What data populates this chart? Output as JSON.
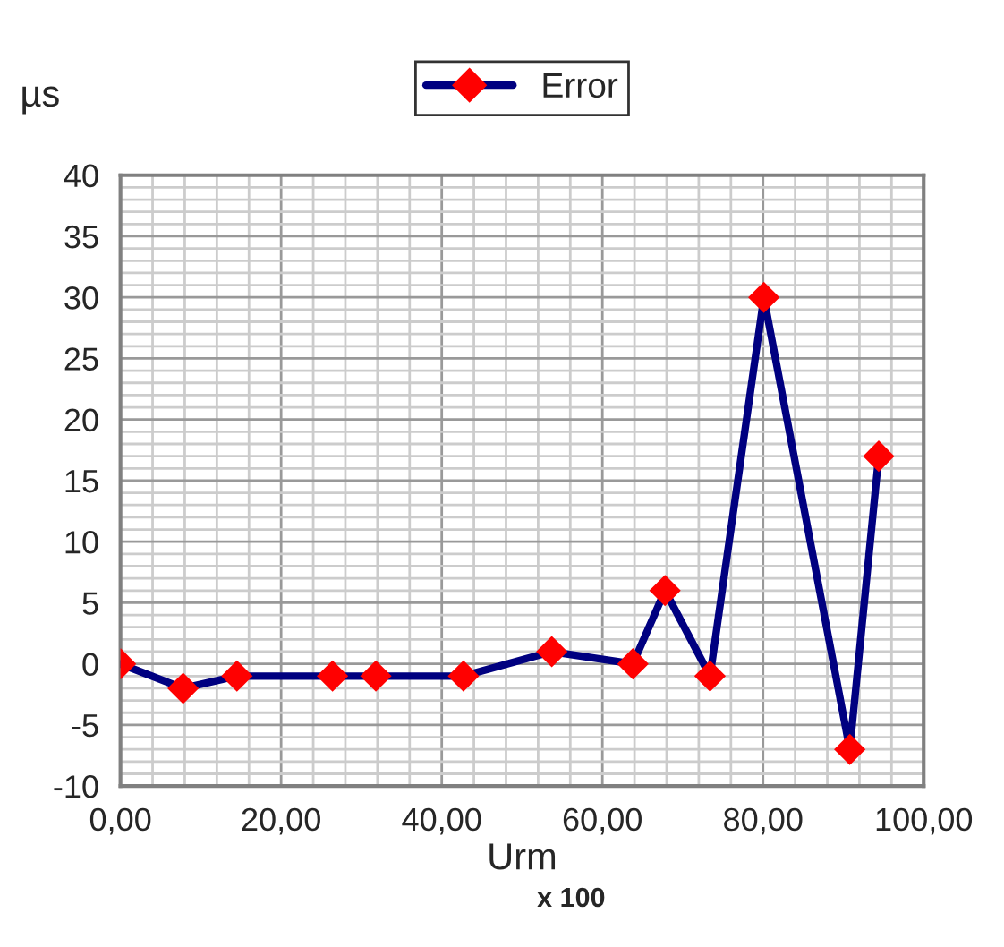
{
  "chart_data": {
    "type": "line",
    "x": [
      0,
      7.8,
      14.5,
      26.4,
      31.8,
      42.7,
      53.7,
      63.8,
      67.8,
      73.4,
      80.1,
      90.8,
      94.4
    ],
    "series": [
      {
        "name": "Error",
        "color": "#000080",
        "colors": [
          "#ff0000",
          "#ff0000",
          "#ff0000",
          "#ff0000",
          "#ff0000",
          "#ff0000",
          "#ff0000",
          "#ff0000",
          "#ff0000",
          "#ff0000",
          "#ff0000",
          "#ff0000",
          "#ff0000"
        ],
        "values": [
          0,
          -2,
          -1,
          -1,
          -1,
          -1,
          1,
          0,
          6,
          -1,
          30,
          -7,
          17
        ]
      }
    ],
    "xlabel": "Urm",
    "ylabel": "µs",
    "annotations": [
      "x 100"
    ],
    "xlim": [
      0,
      100
    ],
    "ylim": [
      -10,
      40
    ],
    "xticks": [
      {
        "value": 0,
        "label": "0,00"
      },
      {
        "value": 20,
        "label": "20,00"
      },
      {
        "value": 40,
        "label": "40,00"
      },
      {
        "value": 60,
        "label": "60,00"
      },
      {
        "value": 80,
        "label": "80,00"
      },
      {
        "value": 100,
        "label": "100,00"
      }
    ],
    "yticks": [
      -10,
      -5,
      0,
      5,
      10,
      15,
      20,
      25,
      30,
      35,
      40
    ],
    "grid": true,
    "legend": "top",
    "marker": "diamond",
    "line_style": "solid"
  }
}
